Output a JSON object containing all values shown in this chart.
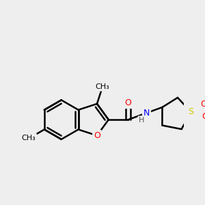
{
  "bg_color": "#eeeeee",
  "bond_color": "#000000",
  "bond_width": 1.8,
  "atom_colors": {
    "O": "#ff0000",
    "N": "#0000ff",
    "S": "#cccc00",
    "C": "#000000",
    "H": "#555555"
  },
  "font_size": 9,
  "figsize": [
    3.0,
    3.0
  ],
  "dpi": 100
}
